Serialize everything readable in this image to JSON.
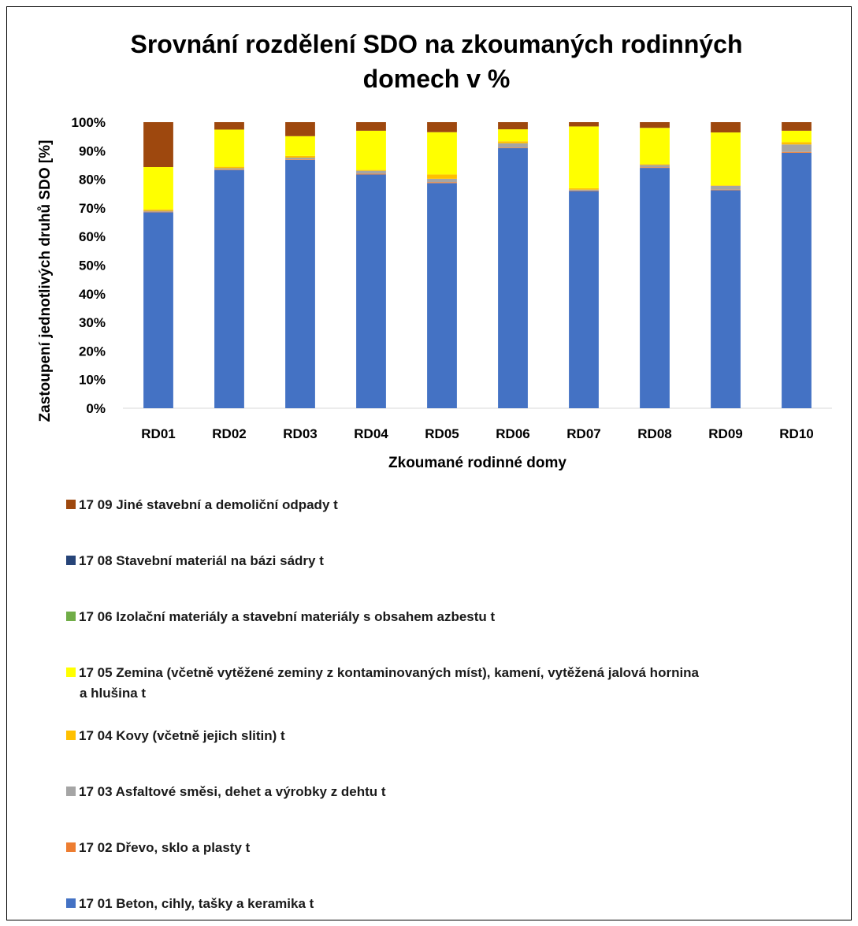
{
  "chart_data": {
    "type": "bar",
    "stacked": true,
    "title_lines": [
      "Srovnání rozdělení SDO na zkoumaných rodinných",
      "domech v %"
    ],
    "xlabel": "Zkoumané rodinné domy",
    "ylabel": "Zastoupení jednotlivých druhů SDO [%]",
    "ylim": [
      0,
      100
    ],
    "yticks": [
      "0%",
      "10%",
      "20%",
      "30%",
      "40%",
      "50%",
      "60%",
      "70%",
      "80%",
      "90%",
      "100%"
    ],
    "grid": false,
    "legend_position": "bottom",
    "categories": [
      "RD01",
      "RD02",
      "RD03",
      "RD04",
      "RD05",
      "RD06",
      "RD07",
      "RD08",
      "RD09",
      "RD10"
    ],
    "series": [
      {
        "name": "17 01 Beton, cihly, tašky a keramika t",
        "color": "#4472C4",
        "values": [
          68.5,
          83.2,
          86.8,
          81.7,
          78.7,
          90.9,
          75.9,
          84.0,
          76.2,
          89.3
        ]
      },
      {
        "name": "17 02 Dřevo, sklo a plasty t",
        "color": "#ED7D31",
        "values": [
          0.2,
          0.2,
          0.2,
          0.3,
          0.3,
          0.2,
          0.2,
          0.2,
          0.2,
          0.3
        ]
      },
      {
        "name": "17 03 Asfaltové směsi, dehet a výrobky z dehtu t",
        "color": "#A5A5A5",
        "values": [
          0.3,
          0.5,
          0.6,
          1.0,
          1.2,
          1.5,
          0.3,
          0.8,
          1.3,
          2.6
        ]
      },
      {
        "name": "17 04 Kovy (včetně jejich slitin) t",
        "color": "#FFC000",
        "values": [
          0.5,
          0.5,
          0.6,
          0.3,
          1.5,
          0.7,
          0.5,
          0.3,
          0.2,
          0.8
        ]
      },
      {
        "name": "17 05 Zemina (včetně vytěžené zeminy z kontaminovaných míst), kamení, vytěžená jalová hornina a hlušina t",
        "color": "#FFFF00",
        "values": [
          14.8,
          13.0,
          6.9,
          13.7,
          14.8,
          4.2,
          21.6,
          12.7,
          18.5,
          4.0
        ]
      },
      {
        "name": "17 06 Izolační materiály a stavební materiály s obsahem azbestu t",
        "color": "#70AD47",
        "values": [
          0,
          0,
          0,
          0,
          0,
          0,
          0,
          0,
          0,
          0
        ]
      },
      {
        "name": "17 08 Stavební materiál na bázi sádry t",
        "color": "#264478",
        "values": [
          0,
          0,
          0,
          0,
          0,
          0,
          0,
          0,
          0,
          0
        ]
      },
      {
        "name": "17 09 Jiné stavební a demoliční odpady t",
        "color": "#9E480E",
        "values": [
          15.7,
          2.6,
          4.9,
          3.0,
          3.5,
          2.5,
          1.5,
          2.0,
          3.6,
          3.0
        ]
      }
    ],
    "legend_entries": [
      [
        "17 09 Jiné stavební a demoliční odpady t"
      ],
      [
        "17 08 Stavební materiál na bázi sádry t"
      ],
      [
        "17 06 Izolační materiály a stavební materiály s obsahem azbestu t"
      ],
      [
        "17 05 Zemina (včetně vytěžené zeminy z kontaminovaných míst), kamení, vytěžená jalová hornina",
        "a hlušina t"
      ],
      [
        "17 04 Kovy (včetně jejich slitin) t"
      ],
      [
        "17 03 Asfaltové směsi, dehet a výrobky z dehtu t"
      ],
      [
        "17 02 Dřevo, sklo a plasty t"
      ],
      [
        "17 01 Beton, cihly, tašky a keramika t"
      ]
    ],
    "legend_colors": [
      "#9E480E",
      "#264478",
      "#70AD47",
      "#FFFF00",
      "#FFC000",
      "#A5A5A5",
      "#ED7D31",
      "#4472C4"
    ]
  }
}
